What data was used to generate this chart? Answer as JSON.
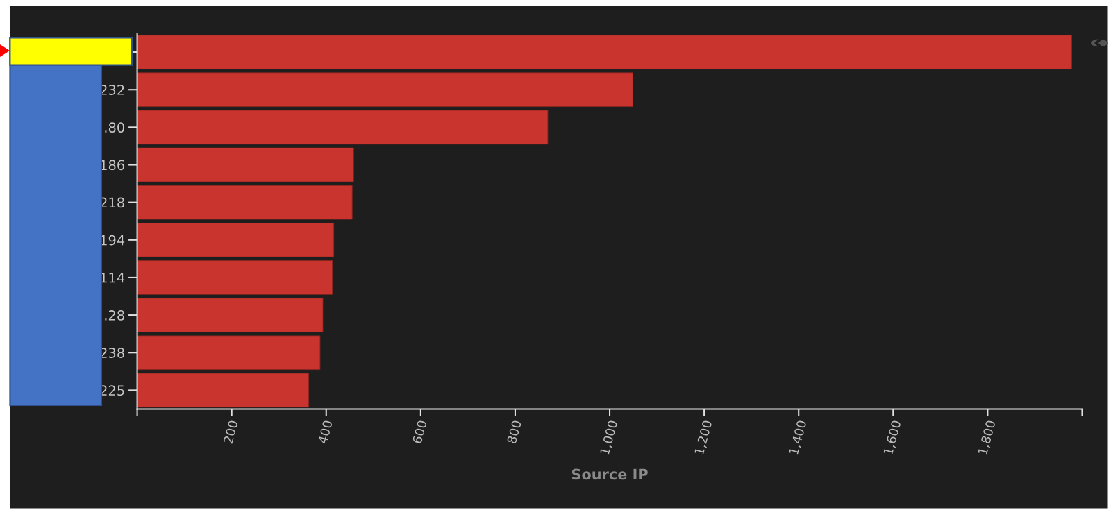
{
  "chart_data": {
    "type": "bar",
    "orientation": "horizontal",
    "xlabel": "Source IP",
    "categories": [
      null,
      "232",
      ".80",
      "186",
      "218",
      "194",
      "114",
      ".28",
      "238",
      "225"
    ],
    "values": [
      1978,
      1049,
      869,
      458,
      455,
      416,
      413,
      393,
      387,
      363
    ],
    "color": "#c9352e",
    "xlim": [
      0,
      2000
    ],
    "xticks": [
      {
        "value": 0,
        "label": null
      },
      200,
      400,
      600,
      800,
      {
        "value": 1000,
        "label": "1,000"
      },
      {
        "value": 1200,
        "label": "1,200"
      },
      {
        "value": 1400,
        "label": "1,400"
      },
      {
        "value": 1600,
        "label": "1,600"
      },
      {
        "value": 1800,
        "label": "1,800"
      },
      {
        "value": 2000,
        "label": null
      }
    ],
    "grid": false,
    "legend": false
  }
}
